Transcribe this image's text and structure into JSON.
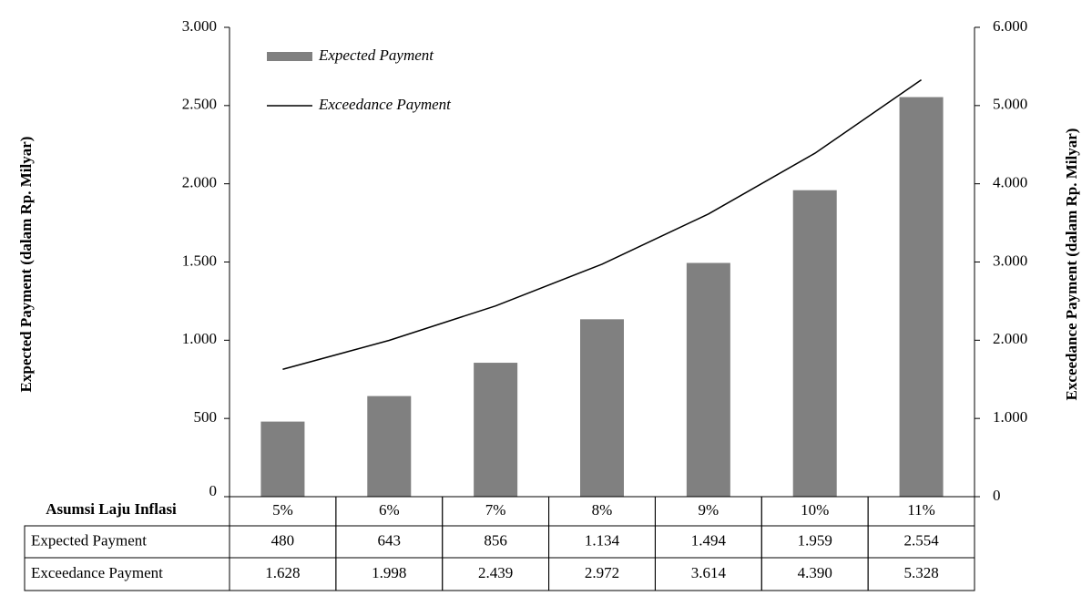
{
  "chart_data": {
    "type": "bar-line",
    "xlabel": "Asumsi Laju Inflasi",
    "ylabel": "Expected Payment (dalam Rp. Milyar)",
    "y2label": "Exceedance Payment (dalam Rp. Milyar)",
    "categories": [
      "5%",
      "6%",
      "7%",
      "8%",
      "9%",
      "10%",
      "11%"
    ],
    "series": [
      {
        "name": "Expected Payment",
        "type": "bar",
        "color": "#808080",
        "values": [
          480,
          643,
          856,
          1134,
          1494,
          1959,
          2554
        ],
        "value_labels": [
          "480",
          "643",
          "856",
          "1.134",
          "1.494",
          "1.959",
          "2.554"
        ]
      },
      {
        "name": "Exceedance Payment",
        "type": "line",
        "color": "#000000",
        "axis": "y2",
        "values": [
          1628,
          1998,
          2439,
          2972,
          3614,
          4390,
          5328
        ],
        "value_labels": [
          "1.628",
          "1.998",
          "2.439",
          "2.972",
          "3.614",
          "4.390",
          "5.328"
        ]
      }
    ],
    "ylim": [
      0,
      3000
    ],
    "yticks": [
      0,
      500,
      {
        "value": 1000,
        "label": "1.000"
      },
      {
        "value": 1500,
        "label": "1.500"
      },
      {
        "value": 2000,
        "label": "2.000"
      },
      {
        "value": 2500,
        "label": "2.500"
      },
      {
        "value": 3000,
        "label": "3.000"
      }
    ],
    "y2lim": [
      0,
      6000
    ],
    "y2ticks": [
      0,
      {
        "value": 1000,
        "label": "1.000"
      },
      {
        "value": 2000,
        "label": "2.000"
      },
      {
        "value": 3000,
        "label": "3.000"
      },
      {
        "value": 4000,
        "label": "4.000"
      },
      {
        "value": 5000,
        "label": "5.000"
      },
      {
        "value": 6000,
        "label": "6.000"
      }
    ],
    "legend": "upper left"
  }
}
